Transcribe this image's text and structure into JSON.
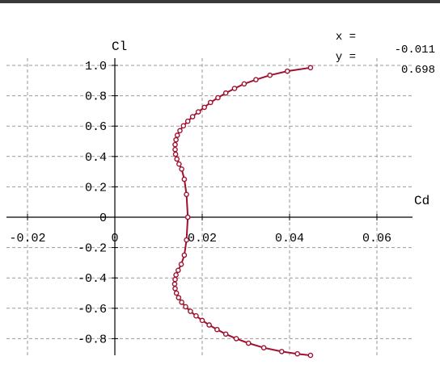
{
  "cursor": {
    "x_label": "x =",
    "x_value": "-0.011",
    "y_label": "y =",
    "y_value": "0.698"
  },
  "chart_data": {
    "type": "line",
    "title": "",
    "xlabel": "Cd",
    "ylabel": "Cl",
    "xlim": [
      -0.027,
      0.07
    ],
    "ylim": [
      -0.95,
      1.05
    ],
    "grid": true,
    "x_ticks": [
      -0.02,
      0,
      0.02,
      0.04,
      0.06
    ],
    "x_tick_labels": [
      "-0.02",
      "0",
      "0.02",
      "0.04",
      "0.06"
    ],
    "y_ticks": [
      1.0,
      0.8,
      0.6,
      0.4,
      0.2,
      0,
      -0.2,
      -0.4,
      -0.6,
      -0.8
    ],
    "y_tick_labels": [
      "1.0",
      "0.8",
      "0.6",
      "0.4",
      "0.2",
      "0",
      "-0.2",
      "-0.4",
      "-0.6",
      "-0.8"
    ],
    "colors": {
      "series": "#a0102e",
      "grid": "#9a9a9a",
      "axis": "#000000"
    },
    "series": [
      {
        "points": [
          [
            0.0448,
            0.985
          ],
          [
            0.0395,
            0.962
          ],
          [
            0.0355,
            0.935
          ],
          [
            0.0323,
            0.906
          ],
          [
            0.0296,
            0.878
          ],
          [
            0.0274,
            0.848
          ],
          [
            0.0254,
            0.818
          ],
          [
            0.0236,
            0.787
          ],
          [
            0.0219,
            0.756
          ],
          [
            0.0205,
            0.724
          ],
          [
            0.0191,
            0.694
          ],
          [
            0.0178,
            0.662
          ],
          [
            0.0167,
            0.632
          ],
          [
            0.0157,
            0.602
          ],
          [
            0.0149,
            0.57
          ],
          [
            0.0143,
            0.54
          ],
          [
            0.014,
            0.51
          ],
          [
            0.0138,
            0.478
          ],
          [
            0.0138,
            0.446
          ],
          [
            0.0139,
            0.415
          ],
          [
            0.0142,
            0.383
          ],
          [
            0.0147,
            0.35
          ],
          [
            0.0153,
            0.317
          ],
          [
            0.0159,
            0.25
          ],
          [
            0.0164,
            0.15
          ],
          [
            0.0167,
            0.0
          ],
          [
            0.0164,
            -0.15
          ],
          [
            0.0159,
            -0.25
          ],
          [
            0.0152,
            -0.31
          ],
          [
            0.0145,
            -0.35
          ],
          [
            0.014,
            -0.38
          ],
          [
            0.0138,
            -0.41
          ],
          [
            0.0137,
            -0.44
          ],
          [
            0.0138,
            -0.47
          ],
          [
            0.0141,
            -0.5
          ],
          [
            0.0146,
            -0.53
          ],
          [
            0.0153,
            -0.56
          ],
          [
            0.0162,
            -0.59
          ],
          [
            0.0173,
            -0.62
          ],
          [
            0.0186,
            -0.65
          ],
          [
            0.02,
            -0.68
          ],
          [
            0.0216,
            -0.71
          ],
          [
            0.0234,
            -0.74
          ],
          [
            0.0254,
            -0.77
          ],
          [
            0.0278,
            -0.8
          ],
          [
            0.0306,
            -0.83
          ],
          [
            0.0341,
            -0.86
          ],
          [
            0.0382,
            -0.885
          ],
          [
            0.0418,
            -0.9
          ],
          [
            0.0448,
            -0.91
          ]
        ]
      }
    ]
  }
}
